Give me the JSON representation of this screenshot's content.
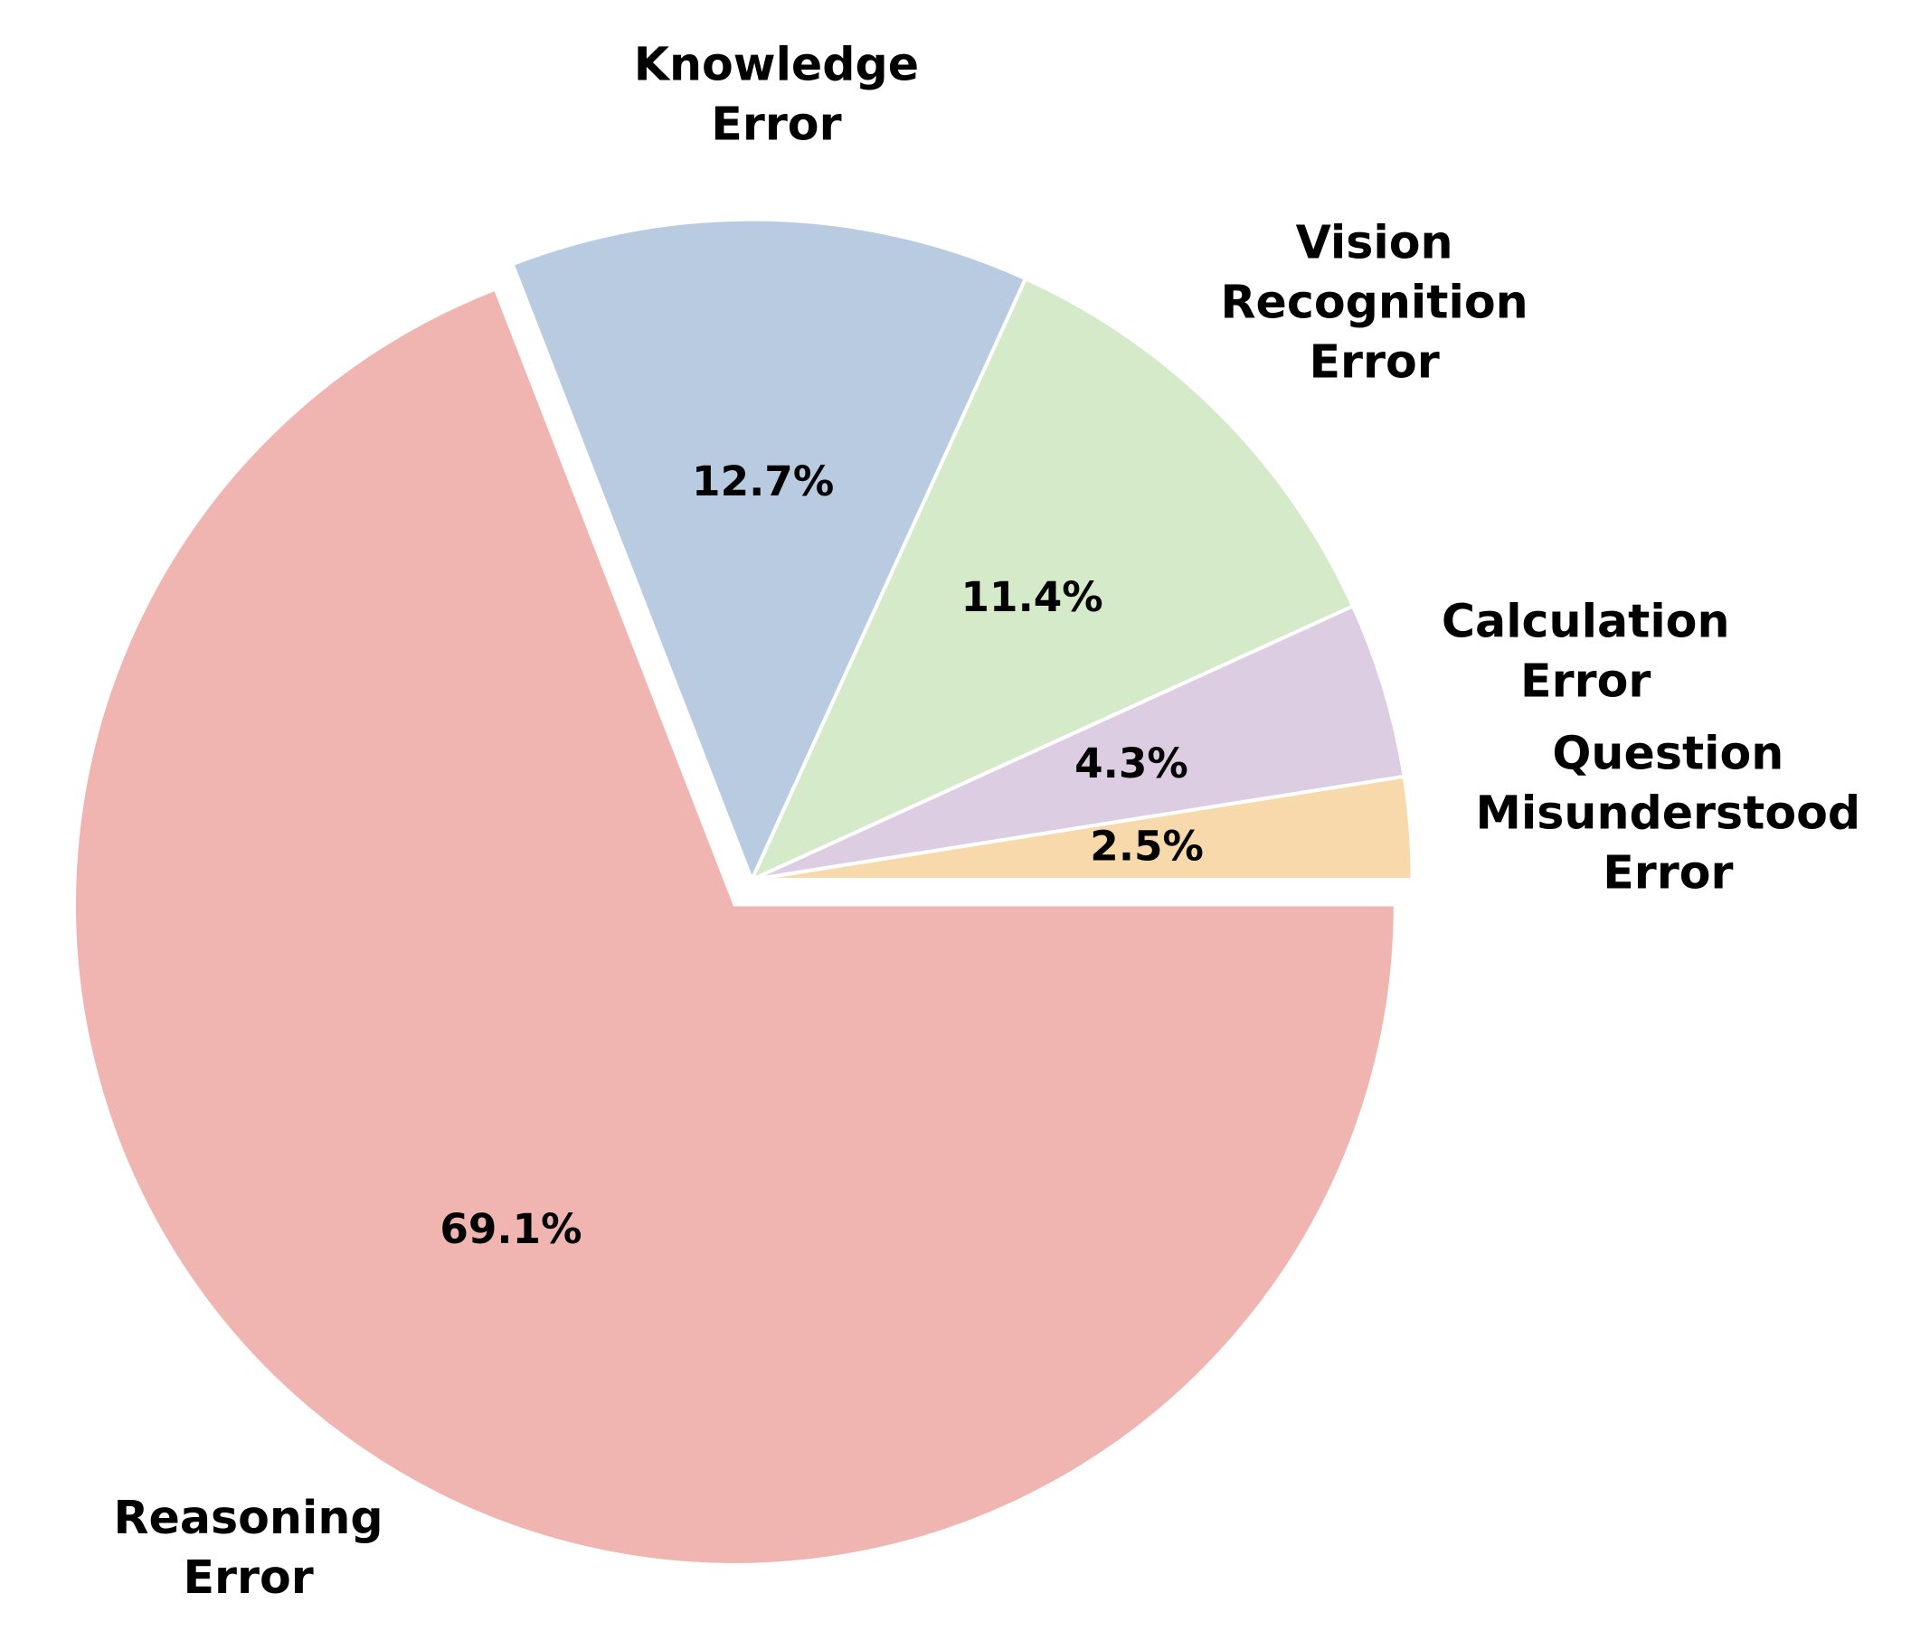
{
  "chart_data": {
    "type": "pie",
    "categories": [
      "Question\nMisunderstood\nError",
      "Calculation\nError",
      "Vision\nRecognition\nError",
      "Knowledge\nError",
      "Reasoning\nError"
    ],
    "values": [
      2.5,
      4.3,
      11.4,
      12.7,
      69.1
    ],
    "value_labels": [
      "2.5%",
      "4.3%",
      "11.4%",
      "12.7%",
      "69.1%"
    ],
    "colors": [
      "#f8d9ac",
      "#dccde2",
      "#d4eac8",
      "#b8cbe0",
      "#f0b5b0"
    ]
  }
}
